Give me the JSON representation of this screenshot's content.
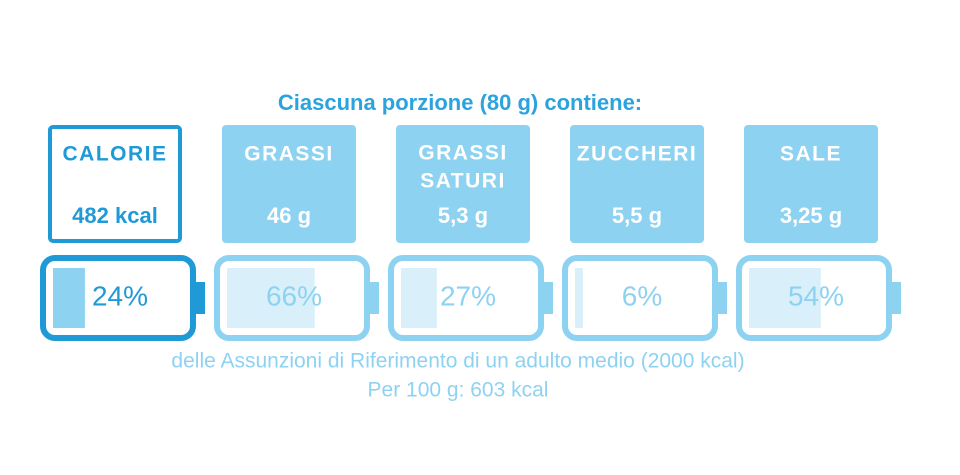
{
  "header": "Ciascuna porzione (80 g) contiene:",
  "items": [
    {
      "name": [
        "CALORIE"
      ],
      "amount": "482 kcal",
      "percent": 24,
      "percent_label": "24%"
    },
    {
      "name": [
        "GRASSI"
      ],
      "amount": "46 g",
      "percent": 66,
      "percent_label": "66%"
    },
    {
      "name": [
        "GRASSI",
        "SATURI"
      ],
      "amount": "5,3 g",
      "percent": 27,
      "percent_label": "27%"
    },
    {
      "name": [
        "ZUCCHERI"
      ],
      "amount": "5,5 g",
      "percent": 6,
      "percent_label": "6%"
    },
    {
      "name": [
        "SALE"
      ],
      "amount": "3,25 g",
      "percent": 54,
      "percent_label": "54%"
    }
  ],
  "footer": [
    "delle Assunzioni di Riferimento di un adulto medio (2000 kcal)",
    "Per 100 g: 603 kcal"
  ]
}
